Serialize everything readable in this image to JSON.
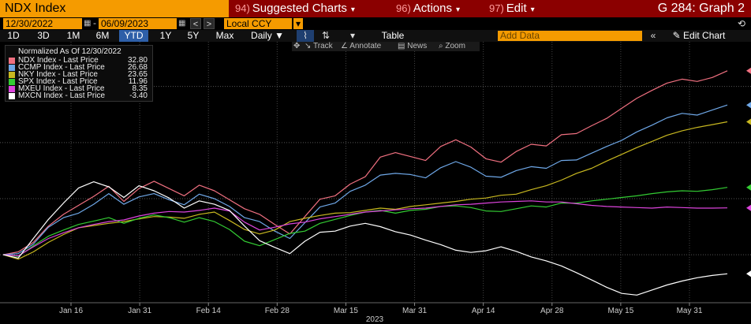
{
  "title_bar": {
    "ticker": "NDX Index",
    "menu": [
      {
        "num": "94)",
        "label": "Suggested Charts"
      },
      {
        "num": "96)",
        "label": "Actions"
      },
      {
        "num": "97)",
        "label": "Edit"
      }
    ],
    "graph_id": "G 284: Graph 2"
  },
  "date_row": {
    "start_date": "12/30/2022",
    "end_date": "06/09/2023",
    "currency": "Local CCY"
  },
  "range_row": {
    "ranges": [
      "1D",
      "3D",
      "1M",
      "6M",
      "YTD",
      "1Y",
      "5Y",
      "Max"
    ],
    "active_range": "YTD",
    "frequency": "Daily",
    "table_label": "Table",
    "add_data_placeholder": "Add Data",
    "edit_chart_label": "Edit Chart"
  },
  "tools": [
    "Track",
    "Annotate",
    "News",
    "Zoom"
  ],
  "legend": {
    "header": "Normalized As Of 12/30/2022",
    "items": [
      {
        "label": "NDX Index - Last Price",
        "value": "32.80",
        "color": "#f07080"
      },
      {
        "label": "CCMP Index - Last Price",
        "value": "26.68",
        "color": "#6fa8e8"
      },
      {
        "label": "NKY Index - Last Price",
        "value": "23.65",
        "color": "#c8b820"
      },
      {
        "label": "SPX Index - Last Price",
        "value": "11.96",
        "color": "#33cc33"
      },
      {
        "label": "MXEU Index - Last Price",
        "value": "8.35",
        "color": "#dd44dd"
      },
      {
        "label": "MXCN Index - Last Price",
        "value": "-3.40",
        "color": "#ffffff"
      }
    ]
  },
  "chart_data": {
    "type": "line",
    "x_tick_labels": [
      "Jan 16",
      "Jan 31",
      "Feb 14",
      "Feb 28",
      "Mar 15",
      "Mar 31",
      "Apr 14",
      "Apr 28",
      "May 15",
      "May 31"
    ],
    "x_axis_year": "2023",
    "ylim": [
      -8,
      36
    ],
    "series": [
      {
        "name": "NDX Index",
        "color": "#f07080",
        "values": [
          0,
          0.5,
          2.2,
          5.1,
          7.2,
          8.8,
          10.4,
          12.2,
          9.5,
          11.8,
          13.1,
          11.8,
          10.5,
          12.4,
          11.4,
          9.8,
          8.2,
          7.2,
          5.4,
          3.7,
          6.8,
          9.9,
          10.5,
          12.6,
          13.9,
          17.4,
          18.2,
          17.5,
          16.8,
          19.3,
          20.5,
          19.2,
          17.1,
          16.5,
          18.4,
          19.7,
          19.4,
          21.4,
          21.6,
          23.0,
          24.3,
          26.1,
          27.9,
          29.3,
          30.6,
          31.3,
          30.9,
          31.6,
          32.8
        ]
      },
      {
        "name": "CCMP Index",
        "color": "#6fa8e8",
        "values": [
          0,
          0.2,
          1.9,
          4.9,
          6.6,
          7.4,
          9.0,
          10.9,
          9.0,
          10.3,
          10.9,
          9.8,
          8.9,
          10.8,
          10.0,
          8.6,
          6.6,
          5.9,
          4.2,
          2.9,
          5.7,
          8.5,
          9.2,
          11.3,
          12.4,
          14.2,
          14.5,
          14.3,
          13.7,
          15.5,
          16.6,
          15.6,
          14.0,
          13.8,
          15.0,
          15.7,
          15.4,
          16.8,
          16.9,
          18.1,
          19.3,
          20.4,
          21.9,
          23.1,
          24.4,
          25.2,
          24.9,
          25.8,
          26.7
        ]
      },
      {
        "name": "NKY Index",
        "color": "#c8b820",
        "values": [
          0,
          -0.8,
          0.5,
          2.2,
          3.6,
          4.8,
          5.2,
          5.6,
          5.9,
          6.4,
          6.8,
          6.7,
          6.5,
          7.2,
          7.6,
          6.1,
          4.5,
          3.7,
          4.4,
          5.9,
          6.5,
          7.0,
          7.4,
          7.5,
          7.9,
          8.3,
          8.1,
          8.6,
          8.9,
          9.2,
          9.5,
          9.9,
          10.1,
          10.6,
          10.8,
          11.6,
          12.3,
          13.3,
          14.5,
          15.4,
          16.7,
          17.9,
          19.1,
          20.2,
          21.3,
          22.1,
          22.7,
          23.2,
          23.7
        ]
      },
      {
        "name": "SPX Index",
        "color": "#33cc33",
        "values": [
          0,
          -0.3,
          1.6,
          3.3,
          4.4,
          5.4,
          6.0,
          6.6,
          5.6,
          6.5,
          7.1,
          6.6,
          5.8,
          6.6,
          5.9,
          4.5,
          2.4,
          1.6,
          2.7,
          3.8,
          4.2,
          5.6,
          6.3,
          7.0,
          7.6,
          7.9,
          7.4,
          7.9,
          8.1,
          8.6,
          8.7,
          8.4,
          7.8,
          7.7,
          8.2,
          8.7,
          8.5,
          9.2,
          9.2,
          9.6,
          9.9,
          10.2,
          10.5,
          10.9,
          11.2,
          11.4,
          11.3,
          11.6,
          12.0
        ]
      },
      {
        "name": "MXEU Index",
        "color": "#dd44dd",
        "values": [
          0,
          -0.2,
          1.4,
          2.9,
          3.9,
          4.8,
          5.4,
          5.9,
          6.2,
          6.9,
          7.4,
          7.7,
          7.6,
          7.9,
          8.3,
          7.8,
          5.8,
          4.4,
          4.9,
          5.5,
          5.8,
          6.4,
          6.8,
          7.2,
          7.6,
          7.8,
          8.0,
          8.2,
          8.3,
          8.6,
          8.9,
          9.0,
          9.2,
          9.4,
          9.5,
          9.6,
          9.4,
          9.4,
          9.1,
          8.8,
          8.6,
          8.5,
          8.4,
          8.3,
          8.5,
          8.4,
          8.3,
          8.3,
          8.35
        ]
      },
      {
        "name": "MXCN Index",
        "color": "#ffffff",
        "values": [
          0,
          -0.6,
          2.9,
          6.3,
          9.2,
          11.9,
          13.0,
          12.1,
          10.2,
          12.3,
          11.4,
          10.1,
          8.3,
          9.6,
          9.0,
          7.9,
          5.1,
          2.5,
          1.3,
          0.2,
          2.4,
          4.0,
          4.2,
          5.1,
          5.6,
          5.0,
          4.1,
          3.5,
          2.6,
          1.8,
          0.8,
          0.4,
          0.7,
          1.4,
          0.6,
          -0.4,
          -1.1,
          -2.0,
          -3.2,
          -4.5,
          -5.8,
          -6.9,
          -7.2,
          -6.3,
          -5.4,
          -4.7,
          -4.1,
          -3.7,
          -3.4
        ]
      }
    ]
  }
}
